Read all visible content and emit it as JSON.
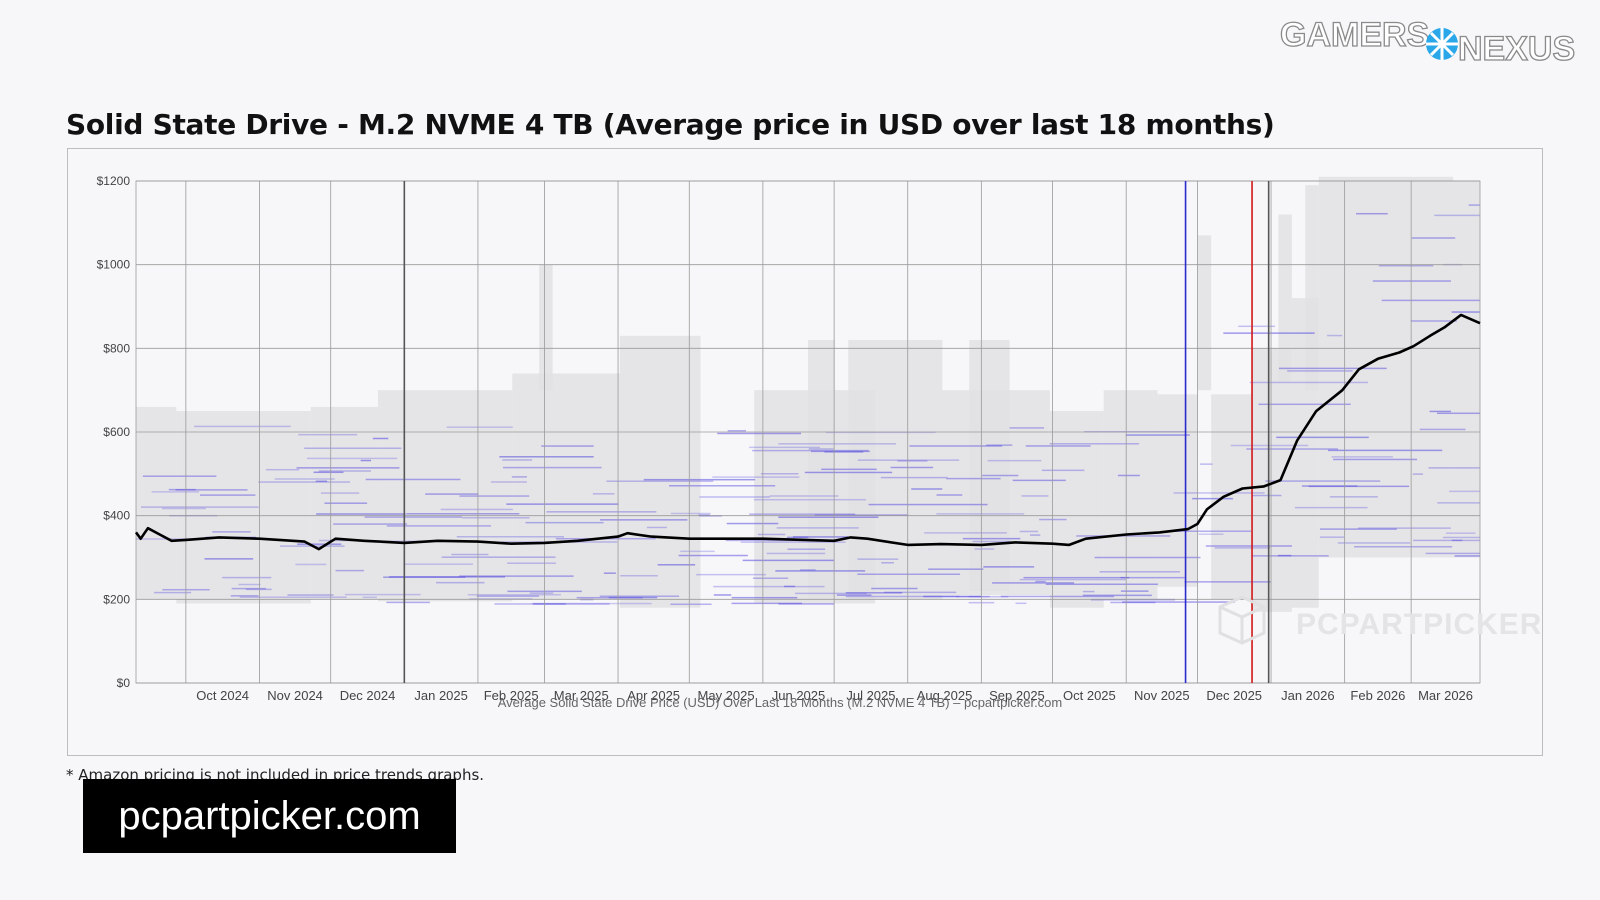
{
  "brand": {
    "logo_text_left": "GAMERS",
    "logo_text_right": "NEXUS"
  },
  "title": "Solid State Drive - M.2 NVME 4 TB (Average price in USD over last 18 months)",
  "footnote": "* Amazon pricing is not included in price trends graphs.",
  "source_label": "pcpartpicker.com",
  "watermark": "PCPARTPICKER",
  "colors": {
    "line": "#000000",
    "grid": "#9a9a9a",
    "bands": "#e2e2e4",
    "listings": "#5a4fe0",
    "marker_blue": "#2a2acf",
    "marker_red": "#d01818",
    "marker_dark": "#555555"
  },
  "chart_data": {
    "type": "line",
    "title": "",
    "xlabel": "Average Solid State Drive Price (USD) Over Last 18 Months (M.2 NVME 4 TB) – pcpartpicker.com",
    "ylabel": "",
    "ylim": [
      0,
      1200
    ],
    "y_ticks": [
      {
        "value": 0,
        "label": "$0"
      },
      {
        "value": 200,
        "label": "$200"
      },
      {
        "value": 400,
        "label": "$400"
      },
      {
        "value": 600,
        "label": "$600"
      },
      {
        "value": 800,
        "label": "$800"
      },
      {
        "value": 1000,
        "label": "$1000"
      },
      {
        "value": 1200,
        "label": "$1200"
      }
    ],
    "x_domain": [
      "2024-09-10",
      "2026-03-30"
    ],
    "x_ticks": [
      "Oct 2024",
      "Nov 2024",
      "Dec 2024",
      "Jan 2025",
      "Feb 2025",
      "Mar 2025",
      "Apr 2025",
      "May 2025",
      "Jun 2025",
      "Jul 2025",
      "Aug 2025",
      "Sep 2025",
      "Oct 2025",
      "Nov 2025",
      "Dec 2025",
      "Jan 2026",
      "Feb 2026",
      "Mar 2026"
    ],
    "month_starts": [
      "2024-10-01",
      "2024-11-01",
      "2024-12-01",
      "2025-01-01",
      "2025-02-01",
      "2025-03-01",
      "2025-04-01",
      "2025-05-01",
      "2025-06-01",
      "2025-07-01",
      "2025-08-01",
      "2025-09-01",
      "2025-10-01",
      "2025-11-01",
      "2025-12-01",
      "2026-01-01",
      "2026-02-01",
      "2026-03-01"
    ],
    "vertical_markers": [
      {
        "date": "2025-01-01",
        "color": "dark"
      },
      {
        "date": "2025-11-26",
        "color": "blue"
      },
      {
        "date": "2025-12-24",
        "color": "red"
      },
      {
        "date": "2025-12-31",
        "color": "dark"
      }
    ],
    "grid": true,
    "series": [
      {
        "name": "",
        "x": [
          "2024-09-10",
          "2024-09-12",
          "2024-09-15",
          "2024-09-20",
          "2024-09-25",
          "2024-10-01",
          "2024-10-15",
          "2024-11-01",
          "2024-11-20",
          "2024-11-26",
          "2024-12-03",
          "2024-12-15",
          "2025-01-01",
          "2025-01-15",
          "2025-02-01",
          "2025-02-15",
          "2025-03-01",
          "2025-03-15",
          "2025-04-01",
          "2025-04-05",
          "2025-04-15",
          "2025-05-01",
          "2025-06-01",
          "2025-07-01",
          "2025-07-08",
          "2025-07-15",
          "2025-08-01",
          "2025-08-15",
          "2025-09-01",
          "2025-09-15",
          "2025-10-01",
          "2025-10-08",
          "2025-10-15",
          "2025-11-01",
          "2025-11-15",
          "2025-11-20",
          "2025-11-27",
          "2025-12-01",
          "2025-12-05",
          "2025-12-12",
          "2025-12-20",
          "2025-12-29",
          "2026-01-05",
          "2026-01-12",
          "2026-01-20",
          "2026-01-31",
          "2026-02-07",
          "2026-02-15",
          "2026-02-24",
          "2026-03-02",
          "2026-03-09",
          "2026-03-15",
          "2026-03-22",
          "2026-03-26",
          "2026-03-30"
        ],
        "values": [
          360,
          345,
          370,
          355,
          340,
          342,
          348,
          345,
          338,
          320,
          345,
          340,
          335,
          340,
          338,
          333,
          335,
          340,
          350,
          358,
          350,
          345,
          345,
          340,
          348,
          345,
          330,
          332,
          330,
          336,
          333,
          330,
          345,
          355,
          360,
          363,
          368,
          380,
          415,
          445,
          465,
          470,
          485,
          580,
          650,
          700,
          750,
          775,
          790,
          805,
          830,
          850,
          880,
          870,
          860
        ]
      }
    ]
  }
}
